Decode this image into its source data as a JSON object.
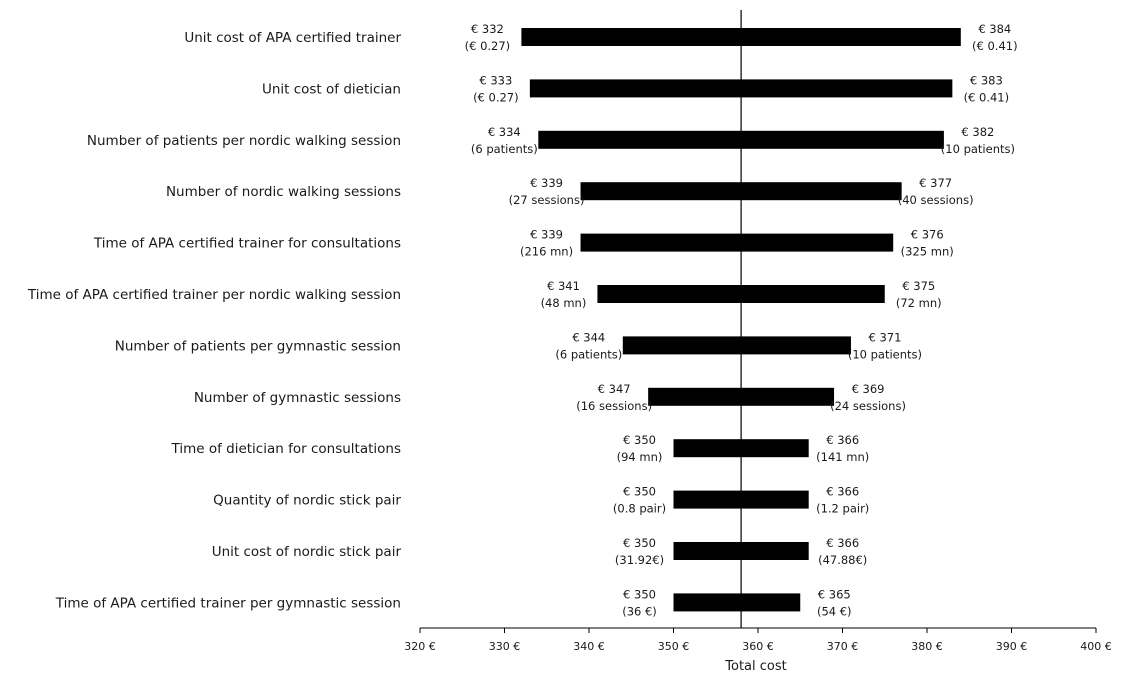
{
  "chart_data": {
    "type": "bar",
    "subtype": "tornado",
    "title": "",
    "xlabel": "Total cost",
    "ylabel": "",
    "xlim": [
      320,
      400
    ],
    "base_value": 358,
    "grid": false,
    "legend": "none",
    "bar_color": "#000000",
    "x_ticks": [
      320,
      330,
      340,
      350,
      360,
      370,
      380,
      390,
      400
    ],
    "x_tick_labels": [
      "320 €",
      "330 €",
      "340 €",
      "350 €",
      "360 €",
      "370 €",
      "380 €",
      "390 €",
      "400 €"
    ],
    "parameters": [
      {
        "label": "Unit cost of APA certified trainer",
        "low": 332,
        "high": 384,
        "low_value": "€ 332",
        "low_detail": "(€ 0.27)",
        "high_value": "€ 384",
        "high_detail": "(€ 0.41)"
      },
      {
        "label": "Unit cost of dietician",
        "low": 333,
        "high": 383,
        "low_value": "€ 333",
        "low_detail": "(€ 0.27)",
        "high_value": "€ 383",
        "high_detail": "(€ 0.41)"
      },
      {
        "label": "Number of patients per nordic walking session",
        "low": 334,
        "high": 382,
        "low_value": "€ 334",
        "low_detail": "(6 patients)",
        "high_value": "€ 382",
        "high_detail": "(10 patients)"
      },
      {
        "label": "Number of nordic walking sessions",
        "low": 339,
        "high": 377,
        "low_value": "€ 339",
        "low_detail": "(27 sessions)",
        "high_value": "€ 377",
        "high_detail": "(40 sessions)"
      },
      {
        "label": "Time of APA certified trainer for consultations",
        "low": 339,
        "high": 376,
        "low_value": "€ 339",
        "low_detail": "(216 mn)",
        "high_value": "€ 376",
        "high_detail": "(325 mn)"
      },
      {
        "label": "Time of APA certified trainer per nordic walking session",
        "low": 341,
        "high": 375,
        "low_value": "€ 341",
        "low_detail": "(48 mn)",
        "high_value": "€ 375",
        "high_detail": "(72 mn)"
      },
      {
        "label": "Number of patients per gymnastic  session",
        "low": 344,
        "high": 371,
        "low_value": "€ 344",
        "low_detail": "(6 patients)",
        "high_value": "€ 371",
        "high_detail": "(10 patients)"
      },
      {
        "label": "Number of gymnastic sessions",
        "low": 347,
        "high": 369,
        "low_value": "€ 347",
        "low_detail": "(16 sessions)",
        "high_value": "€ 369",
        "high_detail": "(24 sessions)"
      },
      {
        "label": "Time of dietician for consultations",
        "low": 350,
        "high": 366,
        "low_value": "€ 350",
        "low_detail": "(94 mn)",
        "high_value": "€ 366",
        "high_detail": "(141 mn)"
      },
      {
        "label": "Quantity of nordic stick pair",
        "low": 350,
        "high": 366,
        "low_value": "€ 350",
        "low_detail": "(0.8 pair)",
        "high_value": "€ 366",
        "high_detail": "(1.2 pair)"
      },
      {
        "label": "Unit cost of nordic stick pair",
        "low": 350,
        "high": 366,
        "low_value": "€ 350",
        "low_detail": "(31.92€)",
        "high_value": "€ 366",
        "high_detail": "(47.88€)"
      },
      {
        "label": "Time of APA certified trainer per gymnastic session",
        "low": 350,
        "high": 365,
        "low_value": "€ 350",
        "low_detail": "(36 €)",
        "high_value": "€ 365",
        "high_detail": "(54 €)"
      }
    ]
  }
}
